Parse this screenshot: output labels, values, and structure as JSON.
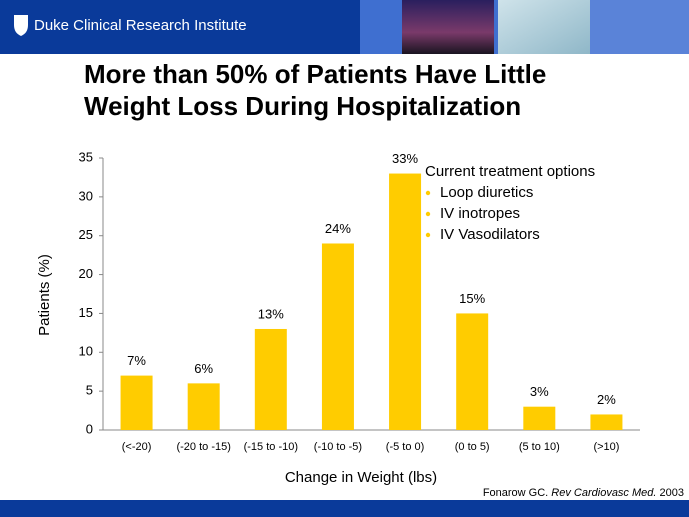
{
  "header": {
    "brand": "Duke Clinical Research Institute"
  },
  "chart_data": {
    "type": "bar",
    "title": [
      "More than 50% of Patients Have Little",
      "Weight Loss During Hospitalization"
    ],
    "x_label": "Change in Weight (lbs)",
    "y_label": "Patients (%)",
    "categories": [
      "(<-20)",
      "(-20 to -15)",
      "(-15 to -10)",
      "(-10 to -5)",
      "(-5 to 0)",
      "(0 to 5)",
      "(5 to 10)",
      "(>10)"
    ],
    "values": [
      7,
      6,
      13,
      24,
      33,
      15,
      3,
      2
    ],
    "value_labels": [
      "7%",
      "6%",
      "13%",
      "24%",
      "33%",
      "15%",
      "3%",
      "2%"
    ],
    "color": "#ffcc00",
    "ylim": [
      0,
      35
    ],
    "yticks": [
      0,
      5,
      10,
      15,
      20,
      25,
      30,
      35
    ],
    "grid": false,
    "annotation": {
      "heading": "Current treatment options",
      "items": [
        "Loop diuretics",
        "IV inotropes",
        "IV Vasodilators"
      ]
    },
    "citation": {
      "author": "Fonarow GC.",
      "journal": "Rev Cardiovasc Med.",
      "year": "2003"
    }
  }
}
